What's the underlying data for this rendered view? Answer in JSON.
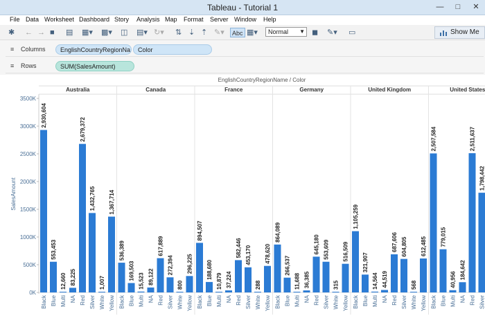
{
  "window": {
    "title": "Tableau - Tutorial 1"
  },
  "menu": [
    "File",
    "Data",
    "Worksheet",
    "Dashboard",
    "Story",
    "Analysis",
    "Map",
    "Format",
    "Server",
    "Window",
    "Help"
  ],
  "toolbar": {
    "label_button": "Abc",
    "fit_select": "Normal",
    "show_me": "Show Me"
  },
  "shelves": {
    "columns_label": "Columns",
    "columns_pills": [
      "EnglishCountryRegionNa..",
      "Color"
    ],
    "rows_label": "Rows",
    "rows_pills": [
      "SUM(SalesAmount)"
    ]
  },
  "chart_data": {
    "type": "bar",
    "title": "EnglishCountryRegionName  /  Color",
    "ylabel": "SalesAmount",
    "ylim": [
      0,
      3500000
    ],
    "yticks": [
      "0K",
      "500K",
      "1000K",
      "1500K",
      "2000K",
      "2500K",
      "3000K",
      "3500K"
    ],
    "panels": [
      {
        "country": "Australia",
        "categories": [
          "Black",
          "Blue",
          "Multi",
          "NA",
          "Red",
          "Silver",
          "White",
          "Yellow"
        ],
        "values": [
          2930604,
          553453,
          12660,
          83225,
          2679372,
          1432765,
          1007,
          1367714
        ],
        "labels": [
          "2,930,604",
          "553,453",
          "12,660",
          "83,225",
          "2,679,372",
          "1,432,765",
          "1,007",
          "1,367,714"
        ]
      },
      {
        "country": "Canada",
        "categories": [
          "Black",
          "Blue",
          "Multi",
          "NA",
          "Red",
          "Silver",
          "White",
          "Yellow"
        ],
        "values": [
          536389,
          169503,
          15523,
          89122,
          617889,
          272394,
          800,
          296225
        ],
        "labels": [
          "536,389",
          "169,503",
          "15,523",
          "89,122",
          "617,889",
          "272,394",
          "800",
          "296,225"
        ]
      },
      {
        "country": "France",
        "categories": [
          "Black",
          "Blue",
          "Multi",
          "NA",
          "Red",
          "Silver",
          "White",
          "Yellow"
        ],
        "values": [
          894507,
          188680,
          10879,
          37224,
          582446,
          453170,
          288,
          478620
        ],
        "labels": [
          "894,507",
          "188,680",
          "10,879",
          "37,224",
          "582,446",
          "453,170",
          "288",
          "478,620"
        ]
      },
      {
        "country": "Germany",
        "categories": [
          "Black",
          "Blue",
          "Multi",
          "NA",
          "Red",
          "Silver",
          "White",
          "Yellow"
        ],
        "values": [
          864089,
          266537,
          11688,
          36385,
          645180,
          553609,
          315,
          516509
        ],
        "labels": [
          "864,089",
          "266,537",
          "11,688",
          "36,385",
          "645,180",
          "553,609",
          "315",
          "516,509"
        ]
      },
      {
        "country": "United Kingdom",
        "categories": [
          "Black",
          "Blue",
          "Multi",
          "NA",
          "Red",
          "Silver",
          "White",
          "Yellow"
        ],
        "values": [
          1105259,
          321907,
          14564,
          44519,
          687606,
          604805,
          568,
          612485
        ],
        "labels": [
          "1,105,259",
          "321,907",
          "14,564",
          "44,519",
          "687,606",
          "604,805",
          "568",
          "612,485"
        ]
      },
      {
        "country": "United States",
        "categories": [
          "Black",
          "Blue",
          "Multi",
          "NA",
          "Red",
          "Silver"
        ],
        "values": [
          2507584,
          779015,
          40956,
          184642,
          2511637,
          1798442
        ],
        "labels": [
          "2,507,584",
          "779,015",
          "40,956",
          "184,642",
          "2,511,637",
          "1,798,442"
        ]
      }
    ],
    "bar_color": "#2b7bd4",
    "grid": false,
    "legend": "none"
  }
}
